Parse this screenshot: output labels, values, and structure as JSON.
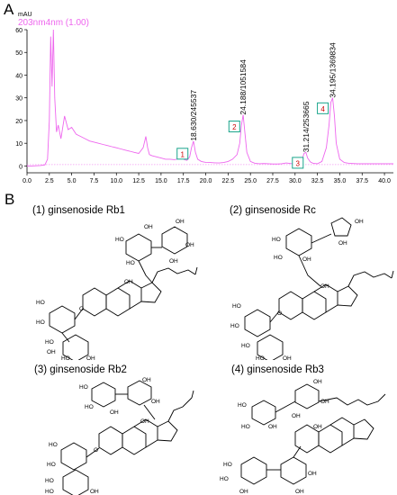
{
  "panel_a": {
    "letter": "A",
    "y_unit": "mAU",
    "trace_label": "203nm4nm (1.00)",
    "trace_color": "#ee66ee",
    "box_color": "#1aa58c",
    "number_color": "#cc0000"
  },
  "panel_b": {
    "letter": "B",
    "structures": [
      {
        "title": "(1) ginsenoside Rb1"
      },
      {
        "title": "(2) ginsenoside Rc"
      },
      {
        "title": "(3) ginsenoside Rb2"
      },
      {
        "title": "(4) ginsenoside Rb3"
      }
    ]
  },
  "chart_data": {
    "type": "line",
    "xlabel": "",
    "ylabel": "mAU",
    "xlim": [
      0.0,
      41.0
    ],
    "ylim": [
      -3,
      60
    ],
    "x_ticks": [
      "0.0",
      "2.5",
      "5.0",
      "7.5",
      "10.0",
      "12.5",
      "15.0",
      "17.5",
      "20.0",
      "22.5",
      "25.0",
      "27.5",
      "30.0",
      "32.5",
      "35.0",
      "37.5",
      "40.0"
    ],
    "y_ticks": [
      "0",
      "10",
      "20",
      "30",
      "40",
      "50",
      "60"
    ],
    "series": [
      {
        "x": [
          0.0,
          0.5,
          1.0,
          1.5,
          2.0,
          2.3,
          2.5,
          2.65,
          2.8,
          2.95,
          3.1,
          3.3,
          3.5,
          3.8,
          4.2,
          4.6,
          5.0,
          5.5,
          6.0,
          6.5,
          7.0,
          7.5,
          8.0,
          8.5,
          9.0,
          9.5,
          10.0,
          10.5,
          11.0,
          11.5,
          12.0,
          12.5,
          13.0,
          13.3,
          13.5,
          13.7,
          14.0,
          14.5,
          15.0,
          15.5,
          16.0,
          16.5,
          17.0,
          17.3,
          17.6,
          17.9,
          18.2,
          18.4,
          18.63,
          18.85,
          19.1,
          19.5,
          20.0,
          20.5,
          21.0,
          21.5,
          22.0,
          22.5,
          23.0,
          23.5,
          23.8,
          24.0,
          24.19,
          24.4,
          24.6,
          25.0,
          25.5,
          26.0,
          26.5,
          27.0,
          27.5,
          28.0,
          28.5,
          29.0,
          29.5,
          30.0,
          30.5,
          30.8,
          31.0,
          31.21,
          31.4,
          31.7,
          32.0,
          32.5,
          33.0,
          33.5,
          33.8,
          34.0,
          34.2,
          34.4,
          34.6,
          35.0,
          35.5,
          36.0,
          37.0,
          38.0,
          39.0,
          40.0,
          41.0
        ],
        "values": [
          0.0,
          0.0,
          0.1,
          0.2,
          0.5,
          3.0,
          20.0,
          57.0,
          35.0,
          60.0,
          30.0,
          15.0,
          18.0,
          12.0,
          22.0,
          16.0,
          17.0,
          14.0,
          13.0,
          12.0,
          11.0,
          10.5,
          10.0,
          9.5,
          9.0,
          8.5,
          8.0,
          7.5,
          7.0,
          6.5,
          6.0,
          5.5,
          8.0,
          13.0,
          8.0,
          5.0,
          4.5,
          4.0,
          3.5,
          3.0,
          3.0,
          2.8,
          3.2,
          5.0,
          2.8,
          2.5,
          4.0,
          8.0,
          11.0,
          6.0,
          3.0,
          2.0,
          1.6,
          1.5,
          1.4,
          1.3,
          1.5,
          2.0,
          3.0,
          5.0,
          10.0,
          18.0,
          22.5,
          14.0,
          6.0,
          2.0,
          1.2,
          1.0,
          1.1,
          1.0,
          0.9,
          0.9,
          1.0,
          1.3,
          1.1,
          1.0,
          1.6,
          3.0,
          5.5,
          6.0,
          3.5,
          1.8,
          1.2,
          1.0,
          2.0,
          8.0,
          18.0,
          28.0,
          30.0,
          22.0,
          10.0,
          3.0,
          1.5,
          1.2,
          1.0,
          1.0,
          1.0,
          1.0,
          1.0
        ]
      }
    ],
    "peaks": [
      {
        "number": "1",
        "x": 17.4,
        "y": 5.0,
        "label": "18.630/245537",
        "label_x": 18.63,
        "label_y": 11.0
      },
      {
        "number": "2",
        "x": 23.2,
        "y": 17.0,
        "label": "24.188/1051584",
        "label_x": 24.19,
        "label_y": 22.5
      },
      {
        "number": "3",
        "x": 30.3,
        "y": 1.0,
        "label": "31.214/253665",
        "label_x": 31.21,
        "label_y": 6.0
      },
      {
        "number": "4",
        "x": 33.1,
        "y": 25.0,
        "label": "34.195/1369834",
        "label_x": 34.2,
        "label_y": 30.0
      }
    ]
  }
}
